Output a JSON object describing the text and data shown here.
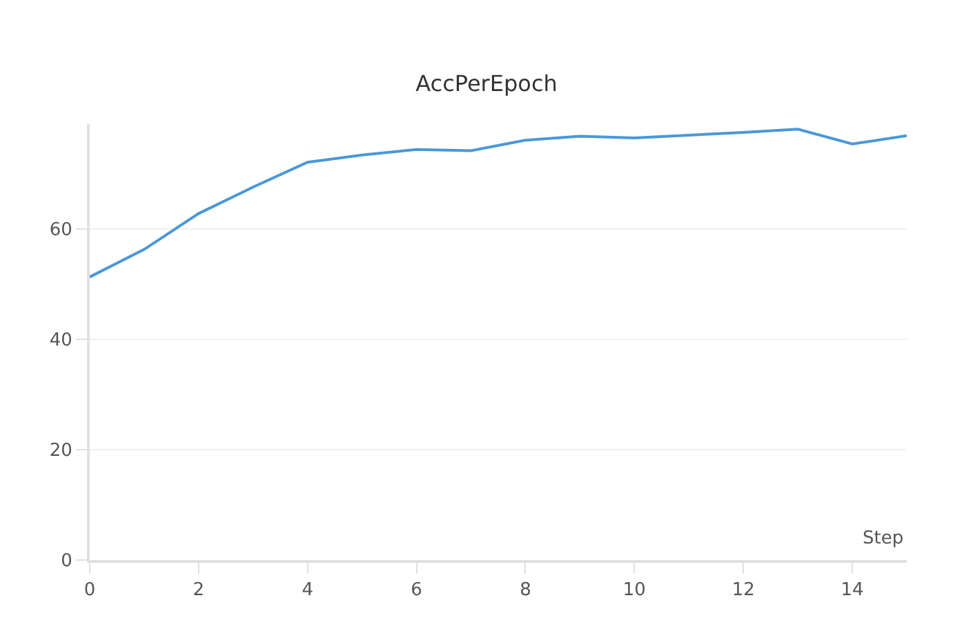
{
  "chart_data": {
    "type": "line",
    "title": "AccPerEpoch",
    "xlabel": "Step",
    "x": [
      0,
      1,
      2,
      3,
      4,
      5,
      6,
      7,
      8,
      9,
      10,
      11,
      12,
      13,
      14,
      15
    ],
    "series": [
      {
        "color": "#4a98d9",
        "values": [
          51.3,
          56.3,
          62.8,
          67.6,
          72.1,
          73.4,
          74.4,
          74.2,
          76.1,
          76.8,
          76.5,
          77.0,
          77.5,
          78.1,
          75.4,
          76.9
        ]
      }
    ],
    "xlim": [
      0,
      15
    ],
    "ylim": [
      0,
      79
    ],
    "xticks": [
      0,
      2,
      4,
      6,
      8,
      10,
      12,
      14
    ],
    "yticks": [
      0,
      20,
      40,
      60
    ],
    "grid": "y",
    "legend": false
  }
}
